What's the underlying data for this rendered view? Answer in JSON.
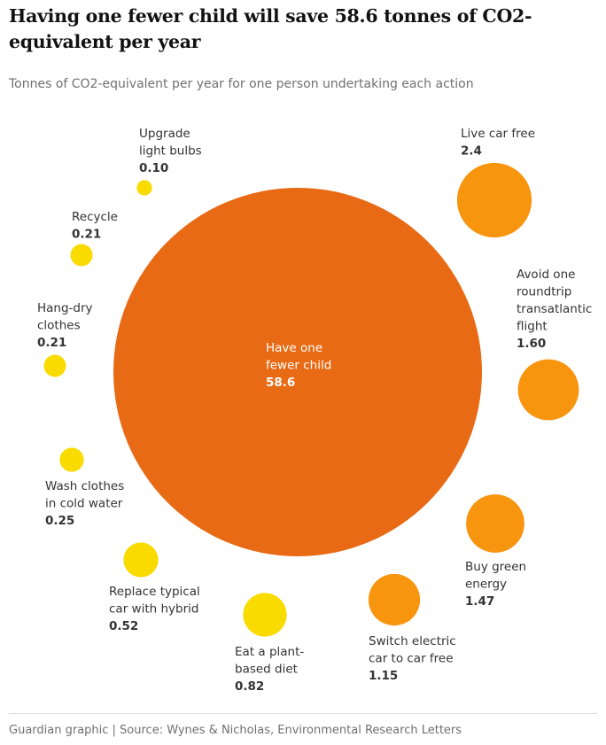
{
  "title": "Having one fewer child will save 58.6 tonnes of CO2-equivalent per year",
  "subtitle": "Tonnes of CO2-equivalent per year for one person undertaking each action",
  "source": "Guardian graphic | Source: Wynes & Nicholas, Environmental Research Letters",
  "colors": {
    "big": "#e86a14",
    "medium": "#f8950f",
    "small": "#f9db00"
  },
  "chart_data": {
    "type": "bubble",
    "unit": "Tonnes of CO2-equivalent per year",
    "items": [
      {
        "label_lines": [
          "Have one",
          "fewer child"
        ],
        "value": 58.6,
        "value_text": "58.6",
        "color": "big"
      },
      {
        "label_lines": [
          "Live car free"
        ],
        "value": 2.4,
        "value_text": "2.4",
        "color": "medium"
      },
      {
        "label_lines": [
          "Avoid one",
          "roundtrip",
          "transatlantic",
          "flight"
        ],
        "value": 1.6,
        "value_text": "1.60",
        "color": "medium"
      },
      {
        "label_lines": [
          "Buy green",
          "energy"
        ],
        "value": 1.47,
        "value_text": "1.47",
        "color": "medium"
      },
      {
        "label_lines": [
          "Switch electric",
          "car to car free"
        ],
        "value": 1.15,
        "value_text": "1.15",
        "color": "medium"
      },
      {
        "label_lines": [
          "Eat a plant-",
          "based diet"
        ],
        "value": 0.82,
        "value_text": "0.82",
        "color": "small"
      },
      {
        "label_lines": [
          "Replace typical",
          "car with hybrid"
        ],
        "value": 0.52,
        "value_text": "0.52",
        "color": "small"
      },
      {
        "label_lines": [
          "Wash clothes",
          "in cold water"
        ],
        "value": 0.25,
        "value_text": "0.25",
        "color": "small"
      },
      {
        "label_lines": [
          "Hang-dry",
          "clothes"
        ],
        "value": 0.21,
        "value_text": "0.21",
        "color": "small"
      },
      {
        "label_lines": [
          "Recycle"
        ],
        "value": 0.21,
        "value_text": "0.21",
        "color": "small"
      },
      {
        "label_lines": [
          "Upgrade",
          "light bulbs"
        ],
        "value": 0.1,
        "value_text": "0.10",
        "color": "small"
      }
    ]
  }
}
